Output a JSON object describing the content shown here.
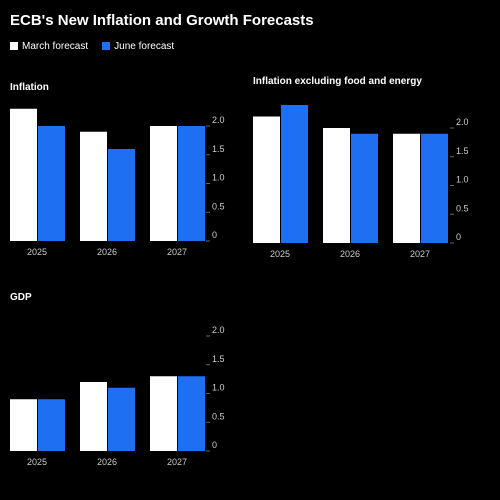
{
  "title": "ECB's New Inflation and Growth Forecasts",
  "chart_data": [
    {
      "type": "bar",
      "title": "Inflation",
      "categories": [
        "2025",
        "2026",
        "2027"
      ],
      "series": [
        {
          "name": "March forecast",
          "color": "#ffffff",
          "values": [
            2.3,
            1.9,
            2.0
          ]
        },
        {
          "name": "June forecast",
          "color": "#1f6ff2",
          "values": [
            2.0,
            1.6,
            2.0
          ]
        }
      ],
      "ylim": [
        0,
        2.4
      ],
      "yticks": [
        0,
        0.5,
        {
          "value": 1,
          "label": "1.0"
        },
        1.5,
        {
          "value": 2,
          "label": "2.0"
        }
      ]
    },
    {
      "type": "bar",
      "title": "Inflation excluding food and energy",
      "categories": [
        "2025",
        "2026",
        "2027"
      ],
      "series": [
        {
          "name": "March forecast",
          "color": "#ffffff",
          "values": [
            2.2,
            2.0,
            1.9
          ]
        },
        {
          "name": "June forecast",
          "color": "#1f6ff2",
          "values": [
            2.4,
            1.9,
            1.9
          ]
        }
      ],
      "ylim": [
        0,
        2.4
      ],
      "yticks": [
        0,
        0.5,
        {
          "value": 1,
          "label": "1.0"
        },
        1.5,
        {
          "value": 2,
          "label": "2.0"
        }
      ]
    },
    {
      "type": "bar",
      "title": "GDP",
      "categories": [
        "2025",
        "2026",
        "2027"
      ],
      "series": [
        {
          "name": "March forecast",
          "color": "#ffffff",
          "values": [
            0.9,
            1.2,
            1.3
          ]
        },
        {
          "name": "June forecast",
          "color": "#1f6ff2",
          "values": [
            0.9,
            1.1,
            1.3
          ]
        }
      ],
      "ylim": [
        0,
        2.4
      ],
      "yticks": [
        0,
        0.5,
        {
          "value": 1,
          "label": "1.0"
        },
        1.5,
        {
          "value": 2,
          "label": "2.0"
        }
      ]
    }
  ]
}
